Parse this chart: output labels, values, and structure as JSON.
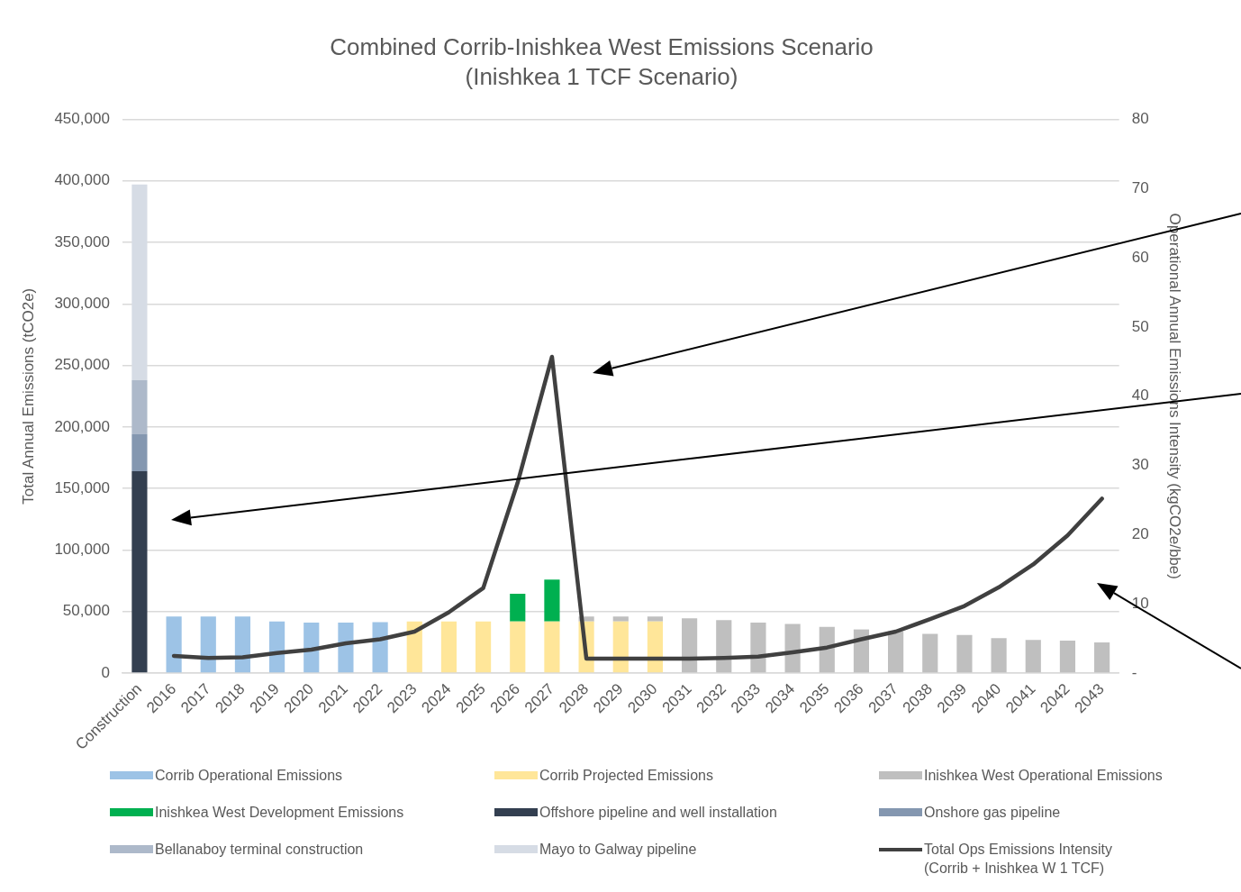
{
  "chart_data": {
    "type": "bar",
    "title": "Combined Corrib-Inishkea West Emissions Scenario",
    "subtitle": "(Inishkea 1 TCF Scenario)",
    "ylabel": "Total Annual Emissions (tCO2e)",
    "y2label": "Operational Annual Emissions Intensity (kgCO2e/bbe)",
    "categories": [
      "Construction",
      "2016",
      "2017",
      "2018",
      "2019",
      "2020",
      "2021",
      "2022",
      "2023",
      "2024",
      "2025",
      "2026",
      "2027",
      "2028",
      "2029",
      "2030",
      "2031",
      "2032",
      "2033",
      "2034",
      "2035",
      "2036",
      "2037",
      "2038",
      "2039",
      "2040",
      "2041",
      "2042",
      "2043"
    ],
    "stacked": true,
    "grid": "y",
    "legend": "bottom",
    "ylim": [
      0,
      450000
    ],
    "yticks": [
      0,
      {
        "value": 50000,
        "label": "50,000"
      },
      {
        "value": 100000,
        "label": "100,000"
      },
      {
        "value": 150000,
        "label": "150,000"
      },
      {
        "value": 200000,
        "label": "200,000"
      },
      {
        "value": 250000,
        "label": "250,000"
      },
      {
        "value": 300000,
        "label": "300,000"
      },
      {
        "value": 350000,
        "label": "350,000"
      },
      {
        "value": 400000,
        "label": "400,000"
      },
      {
        "value": 450000,
        "label": "450,000"
      }
    ],
    "y2lim": [
      0,
      80
    ],
    "y2ticks": [
      {
        "value": 0,
        "label": "-"
      },
      10,
      20,
      30,
      40,
      50,
      60,
      70,
      80
    ],
    "series": [
      {
        "name": "Corrib Operational Emissions",
        "color": "#9dc3e6",
        "values": [
          null,
          46000,
          46000,
          46000,
          42000,
          41000,
          41000,
          41500,
          null,
          null,
          null,
          null,
          null,
          null,
          null,
          null,
          null,
          null,
          null,
          null,
          null,
          null,
          null,
          null,
          null,
          null,
          null,
          null,
          null
        ]
      },
      {
        "name": "Corrib Projected Emissions",
        "color": "#ffe699",
        "values": [
          null,
          null,
          null,
          null,
          null,
          null,
          null,
          null,
          42000,
          42000,
          42000,
          42000,
          42000,
          42000,
          42000,
          42000,
          null,
          null,
          null,
          null,
          null,
          null,
          null,
          null,
          null,
          null,
          null,
          null,
          null
        ]
      },
      {
        "name": "Inishkea West Operational Emissions",
        "color": "#bfbfbf",
        "values": [
          null,
          null,
          null,
          null,
          null,
          null,
          null,
          null,
          null,
          null,
          null,
          null,
          null,
          4000,
          4000,
          4000,
          44500,
          43000,
          41000,
          40000,
          37500,
          35500,
          34000,
          32000,
          31000,
          28500,
          27000,
          26500,
          25000
        ]
      },
      {
        "name": "Inishkea West Development Emissions",
        "color": "#00b050",
        "values": [
          null,
          null,
          null,
          null,
          null,
          null,
          null,
          null,
          null,
          null,
          null,
          22500,
          34000,
          null,
          null,
          null,
          null,
          null,
          null,
          null,
          null,
          null,
          null,
          null,
          null,
          null,
          null,
          null,
          null
        ]
      },
      {
        "name": "Offshore pipeline and well installation",
        "color": "#333f50",
        "values": [
          164000,
          null,
          null,
          null,
          null,
          null,
          null,
          null,
          null,
          null,
          null,
          null,
          null,
          null,
          null,
          null,
          null,
          null,
          null,
          null,
          null,
          null,
          null,
          null,
          null,
          null,
          null,
          null,
          null
        ]
      },
      {
        "name": "Onshore gas pipeline",
        "color": "#8497b0",
        "values": [
          30000,
          null,
          null,
          null,
          null,
          null,
          null,
          null,
          null,
          null,
          null,
          null,
          null,
          null,
          null,
          null,
          null,
          null,
          null,
          null,
          null,
          null,
          null,
          null,
          null,
          null,
          null,
          null,
          null
        ]
      },
      {
        "name": "Bellanaboy terminal construction",
        "color": "#adb9ca",
        "values": [
          44000,
          null,
          null,
          null,
          null,
          null,
          null,
          null,
          null,
          null,
          null,
          null,
          null,
          null,
          null,
          null,
          null,
          null,
          null,
          null,
          null,
          null,
          null,
          null,
          null,
          null,
          null,
          null,
          null
        ]
      },
      {
        "name": "Mayo to Galway pipeline",
        "color": "#d6dce5",
        "values": [
          159000,
          null,
          null,
          null,
          null,
          null,
          null,
          null,
          null,
          null,
          null,
          null,
          null,
          null,
          null,
          null,
          null,
          null,
          null,
          null,
          null,
          null,
          null,
          null,
          null,
          null,
          null,
          null,
          null
        ]
      },
      {
        "name": "Total Ops Emissions Intensity (Corrib + Inishkea W 1 TCF)",
        "type": "line",
        "axis": "y2",
        "color": "#404040",
        "line_style": "solid",
        "marker": "none",
        "values": [
          null,
          2.5,
          2.2,
          2.3,
          2.9,
          3.4,
          4.3,
          4.9,
          6.0,
          8.8,
          12.3,
          27.5,
          45.7,
          2.1,
          2.1,
          2.1,
          2.1,
          2.2,
          2.4,
          3.0,
          3.7,
          4.9,
          6.0,
          7.8,
          9.7,
          12.4,
          15.7,
          19.9,
          25.2
        ]
      }
    ]
  }
}
